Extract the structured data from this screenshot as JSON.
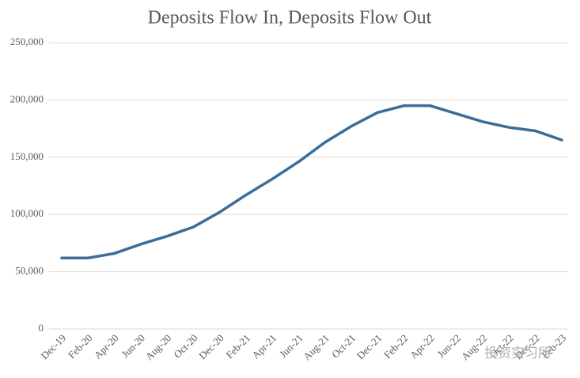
{
  "chart_data": {
    "type": "line",
    "title": "Deposits Flow In, Deposits Flow Out",
    "categories": [
      "Dec-19",
      "Feb-20",
      "Apr-20",
      "Jun-20",
      "Aug-20",
      "Oct-20",
      "Dec-20",
      "Feb-21",
      "Apr-21",
      "Jun-21",
      "Aug-21",
      "Oct-21",
      "Dec-21",
      "Feb-22",
      "Apr-22",
      "Jun-22",
      "Aug-22",
      "Oct-22",
      "Dec-22",
      "Feb-23"
    ],
    "series": [
      {
        "color": "#3a6d98",
        "values": [
          62000,
          62000,
          66000,
          74000,
          81000,
          89000,
          102000,
          117000,
          131000,
          146000,
          163000,
          177000,
          189000,
          195000,
          195000,
          188000,
          181000,
          176000,
          173000,
          165000
        ]
      }
    ],
    "ylim": [
      0,
      250000
    ],
    "yticks": [
      0,
      {
        "value": 50000,
        "label": "50,000"
      },
      {
        "value": 100000,
        "label": "100,000"
      },
      {
        "value": 150000,
        "label": "150,000"
      },
      {
        "value": 200000,
        "label": "200,000"
      },
      {
        "value": 250000,
        "label": "250,000"
      }
    ],
    "grid": true
  },
  "watermark": "投资实习所"
}
